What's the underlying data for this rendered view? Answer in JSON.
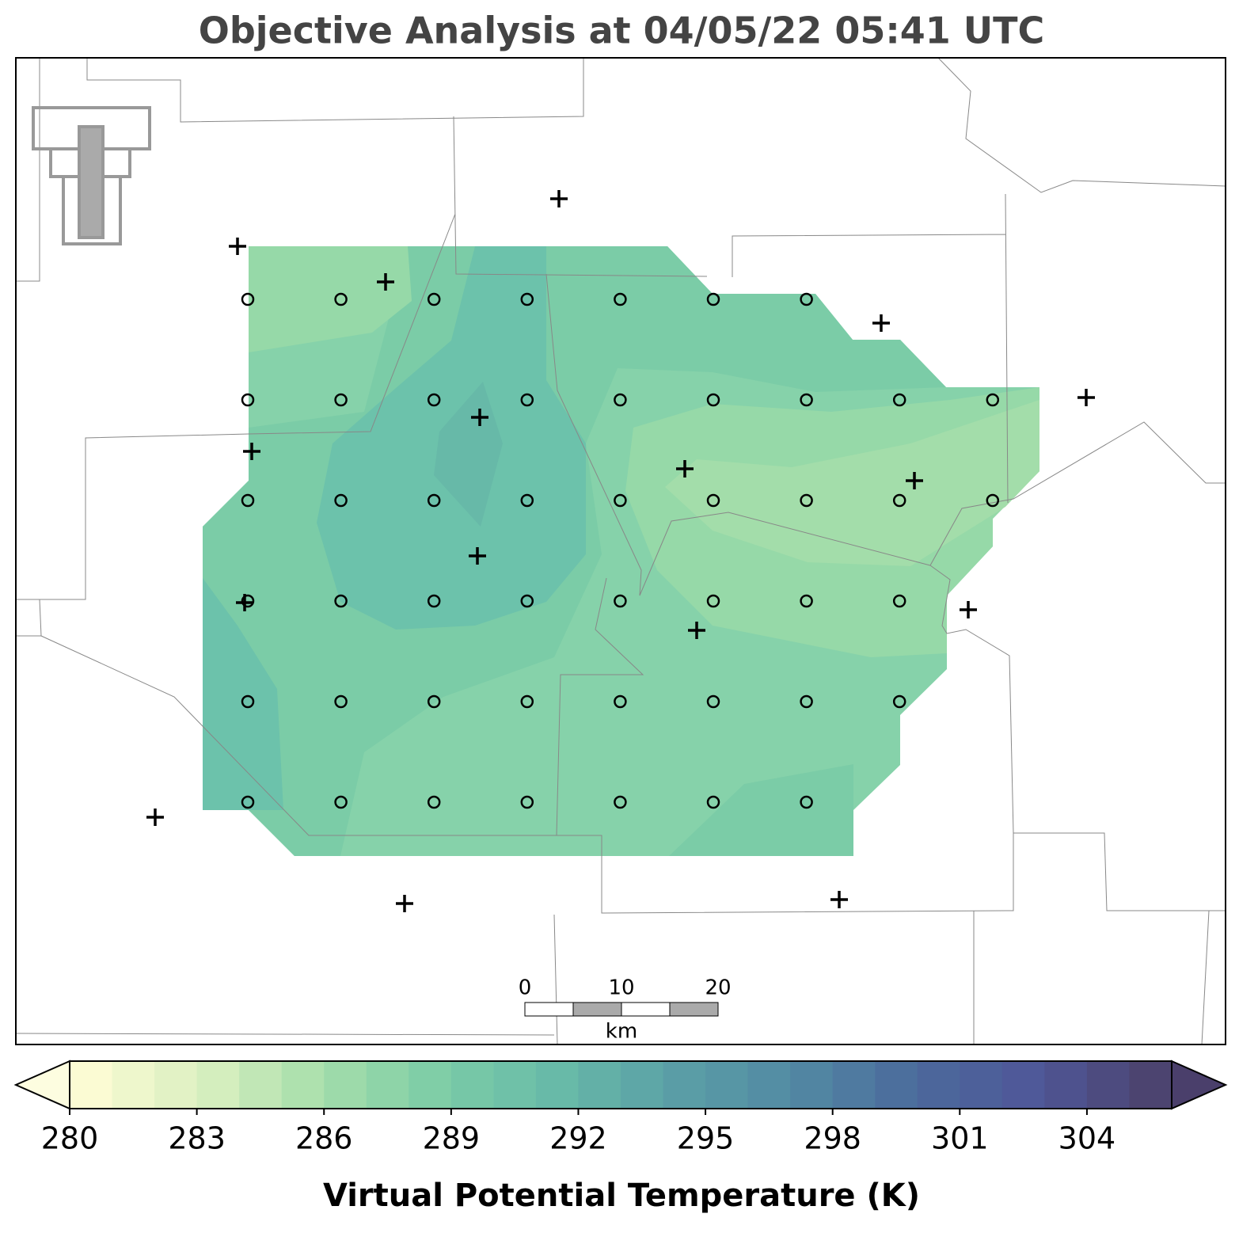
{
  "title": "Objective Analysis at 04/05/22 05:41 UTC",
  "scale_bar": {
    "labels": [
      "0",
      "10",
      "20"
    ],
    "unit": "km"
  },
  "colorbar": {
    "label": "Virtual Potential Temperature (K)",
    "lim": [
      280,
      306
    ],
    "step": 1,
    "ticks": [
      280,
      283,
      286,
      289,
      292,
      295,
      298,
      301,
      304
    ],
    "cmap": [
      "#fbfbd3",
      "#d8efc0",
      "#a3ddaa",
      "#7bcca7",
      "#67b9a8",
      "#5a9ea6",
      "#5289a3",
      "#4b6a9c",
      "#4f5899",
      "#4c4470"
    ],
    "extend_colors": [
      "#fdfde0",
      "#4a3f6b"
    ]
  }
}
